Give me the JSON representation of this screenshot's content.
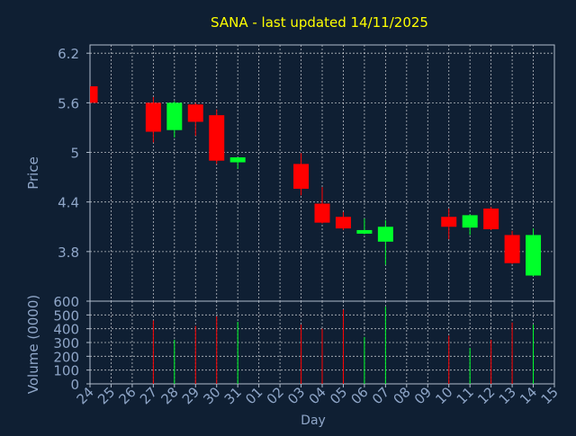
{
  "chart_data": {
    "type": "candlestick",
    "title": "SANA - last updated 14/11/2025",
    "xlabel": "Day",
    "price_panel": {
      "ylabel": "Price",
      "yticks": [
        3.8,
        4.4,
        5,
        5.6,
        6.2
      ],
      "ytick_labels": [
        "3.8",
        "4.4",
        "5",
        "5.6",
        "6.2"
      ],
      "ylim": [
        3.2,
        6.3
      ]
    },
    "volume_panel": {
      "ylabel": "Volume (0000)",
      "yticks": [
        0,
        100,
        200,
        300,
        400,
        500,
        600
      ],
      "ytick_labels": [
        "0",
        "100",
        "200",
        "300",
        "400",
        "500",
        "600"
      ],
      "ylim": [
        0,
        600
      ]
    },
    "x_labels": [
      "24",
      "25",
      "26",
      "27",
      "28",
      "29",
      "30",
      "31",
      "01",
      "02",
      "03",
      "04",
      "05",
      "06",
      "07",
      "08",
      "09",
      "10",
      "11",
      "12",
      "13",
      "14",
      "15"
    ],
    "candles": [
      {
        "day": "24",
        "open": 5.8,
        "high": 5.8,
        "low": 5.6,
        "close": 5.6,
        "volume": null
      },
      {
        "day": "27",
        "open": 5.6,
        "high": 5.67,
        "low": 5.12,
        "close": 5.25,
        "volume": 460
      },
      {
        "day": "28",
        "open": 5.27,
        "high": 5.62,
        "low": 5.18,
        "close": 5.6,
        "volume": 320
      },
      {
        "day": "29",
        "open": 5.58,
        "high": 5.6,
        "low": 5.2,
        "close": 5.37,
        "volume": 420
      },
      {
        "day": "30",
        "open": 5.45,
        "high": 5.52,
        "low": 4.86,
        "close": 4.9,
        "volume": 490
      },
      {
        "day": "31",
        "open": 4.88,
        "high": 4.94,
        "low": 4.8,
        "close": 4.94,
        "volume": 450
      },
      {
        "day": "03",
        "open": 4.86,
        "high": 4.99,
        "low": 4.48,
        "close": 4.56,
        "volume": 430
      },
      {
        "day": "04",
        "open": 4.38,
        "high": 4.58,
        "low": 4.14,
        "close": 4.15,
        "volume": 400
      },
      {
        "day": "05",
        "open": 4.22,
        "high": 4.28,
        "low": 4.06,
        "close": 4.08,
        "volume": 540
      },
      {
        "day": "06",
        "open": 4.03,
        "high": 4.2,
        "low": 4.01,
        "close": 4.06,
        "volume": 340
      },
      {
        "day": "07",
        "open": 3.92,
        "high": 4.18,
        "low": 3.64,
        "close": 4.1,
        "volume": 560
      },
      {
        "day": "10",
        "open": 4.22,
        "high": 4.32,
        "low": 3.95,
        "close": 4.1,
        "volume": 350
      },
      {
        "day": "11",
        "open": 4.09,
        "high": 4.25,
        "low": 4.0,
        "close": 4.24,
        "volume": 260
      },
      {
        "day": "12",
        "open": 4.32,
        "high": 4.34,
        "low": 4.06,
        "close": 4.07,
        "volume": 320
      },
      {
        "day": "13",
        "open": 4.0,
        "high": 4.05,
        "low": 3.65,
        "close": 3.66,
        "volume": 445
      },
      {
        "day": "14",
        "open": 3.51,
        "high": 4.08,
        "low": 3.5,
        "close": 4.0,
        "volume": 430
      }
    ],
    "colors": {
      "background": "#0f1f33",
      "plot_background": "#0f1f33",
      "up": "#00ff2a",
      "down": "#ff0000",
      "title": "#ffff00",
      "text": "#8fa6c8",
      "grid": "#ffffff",
      "axis": "#b0bccc"
    },
    "grid": true
  }
}
